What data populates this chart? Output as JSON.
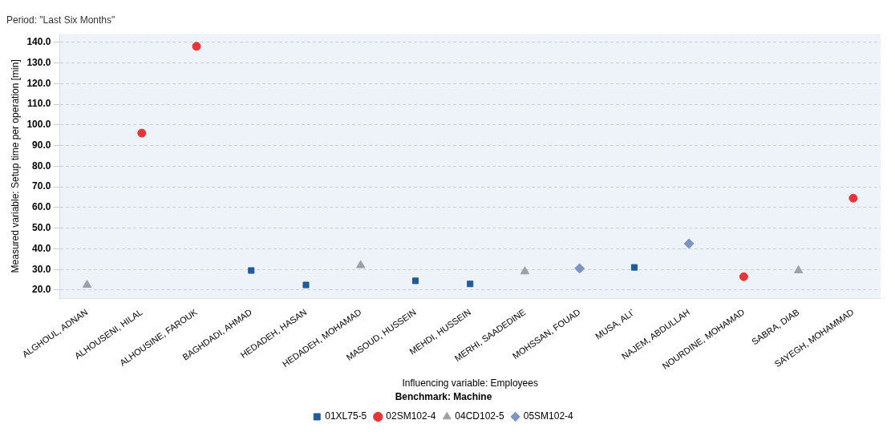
{
  "chart_data": {
    "type": "scatter",
    "title": "Period: \"Last Six Months\"",
    "xlabel": "Influencing variable: Employees",
    "ylabel": "Measured variable: Setup time per operation [min]",
    "legend_title": "Benchmark: Machine",
    "categories": [
      "ALGHOUL, ADNAN",
      "ALHOUSENI, HILAL",
      "ALHOUSINE, FAROUK",
      "BAGHDADI, AHMAD",
      "HEDADEH, HASAN",
      "HEDADEH, MOHAMAD",
      "MASOUD, HUSSEIN",
      "MEHDI, HUSSEIN",
      "MERHI, SAADEDINE",
      "MOHSSAN, FOUAD",
      "MUSA, ALI`",
      "NAJEM, ABDULLAH",
      "NOURDINE, MOHAMAD",
      "SABRA, DIAB",
      "SAYEGH, MOHAMMAD"
    ],
    "series": [
      {
        "name": "01XL75-5",
        "color": "#1f5c99",
        "marker": "square",
        "x": [
          "BAGHDADI, AHMAD",
          "HEDADEH, HASAN",
          "MASOUD, HUSSEIN",
          "MEHDI, HUSSEIN",
          "MUSA, ALI`"
        ],
        "values": [
          29.5,
          22.5,
          24.5,
          23,
          31
        ]
      },
      {
        "name": "02SM102-4",
        "color": "#e8353a",
        "marker": "circle",
        "x": [
          "ALHOUSENI, HILAL",
          "ALHOUSINE, FAROUK",
          "NOURDINE, MOHAMAD",
          "SAYEGH, MOHAMMAD"
        ],
        "values": [
          96,
          138,
          26.5,
          64.5
        ]
      },
      {
        "name": "04CD102-5",
        "color": "#9aa1aa",
        "marker": "triangle",
        "x": [
          "ALGHOUL, ADNAN",
          "HEDADEH, MOHAMAD",
          "MERHI, SAADEDINE",
          "SABRA, DIAB"
        ],
        "values": [
          22.5,
          32,
          29,
          29.5
        ]
      },
      {
        "name": "05SM102-4",
        "color": "#7d95c4",
        "marker": "diamond",
        "x": [
          "MOHSSAN, FOUAD",
          "NAJEM, ABDULLAH"
        ],
        "values": [
          30.5,
          42.5
        ]
      }
    ],
    "ylim": [
      16,
      144
    ],
    "yticks": [
      {
        "value": 20,
        "label": "20.0"
      },
      {
        "value": 30,
        "label": "30.0"
      },
      {
        "value": 40,
        "label": "40.0"
      },
      {
        "value": 50,
        "label": "50.0"
      },
      {
        "value": 60,
        "label": "60.0"
      },
      {
        "value": 70,
        "label": "70.0"
      },
      {
        "value": 80,
        "label": "80.0"
      },
      {
        "value": 90,
        "label": "90.0"
      },
      {
        "value": 100,
        "label": "100.0"
      },
      {
        "value": 110,
        "label": "110.0"
      },
      {
        "value": 120,
        "label": "120.0"
      },
      {
        "value": 130,
        "label": "130.0"
      },
      {
        "value": 140,
        "label": "140.0"
      }
    ],
    "grid": "y",
    "legend": "bottom"
  }
}
